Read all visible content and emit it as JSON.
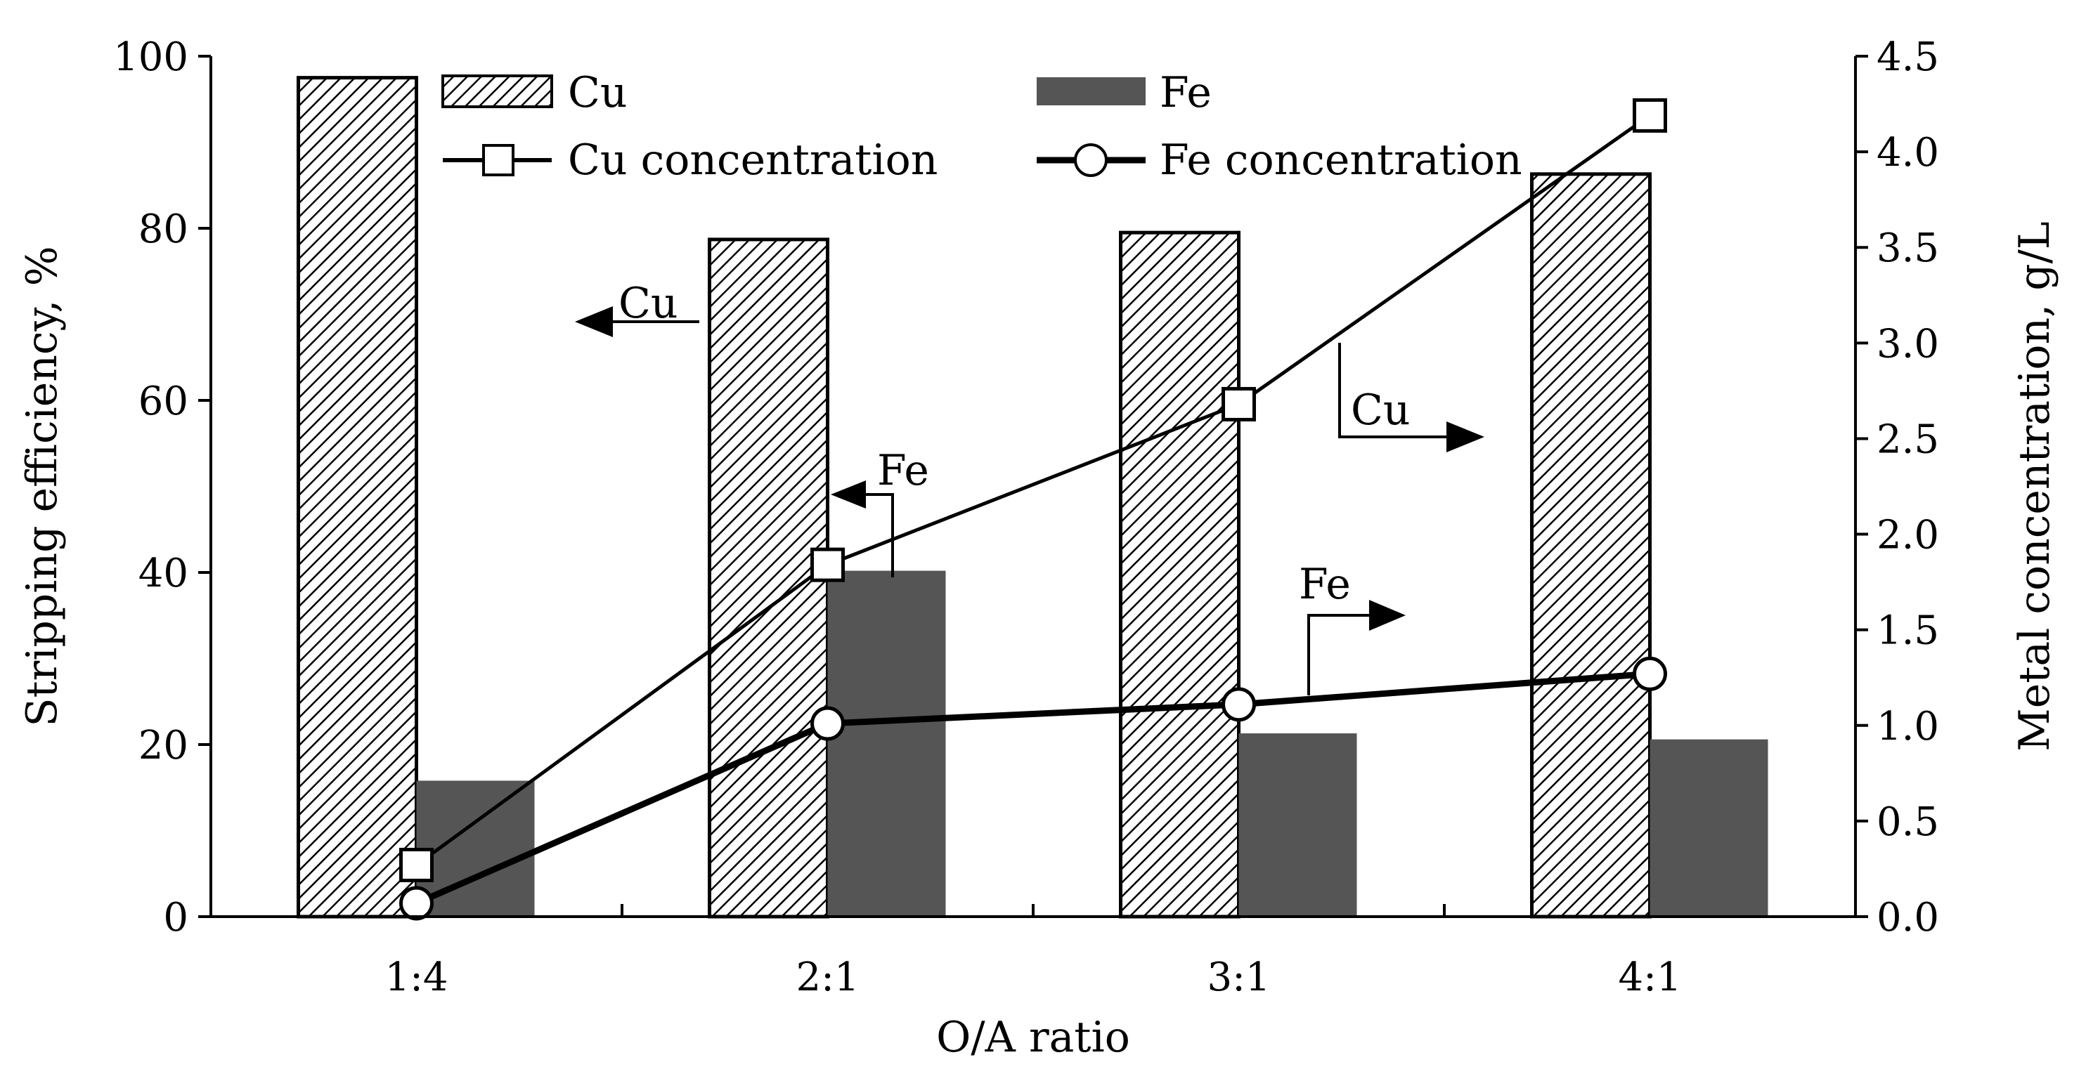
{
  "chart_data": {
    "type": "bar",
    "title": "",
    "xlabel": "O/A ratio",
    "ylabel": "Stripping  efficiency, %",
    "y2label": "Metal concentration, g/L",
    "categories": [
      "1:4",
      "2:1",
      "3:1",
      "4:1"
    ],
    "ylim": [
      0,
      100
    ],
    "y2lim": [
      0,
      4.5
    ],
    "yticks": [
      "0",
      "20",
      "40",
      "60",
      "80",
      "100"
    ],
    "y2ticks": [
      "0.0",
      "0.5",
      "1.0",
      "1.5",
      "2.0",
      "2.5",
      "3.0",
      "3.5",
      "4.0",
      "4.5"
    ],
    "series": [
      {
        "name": "Cu",
        "type": "bar",
        "axis": "left",
        "pattern": "hatched",
        "values": [
          97.5,
          78.7,
          79.5,
          86.3
        ]
      },
      {
        "name": "Fe",
        "type": "bar",
        "axis": "left",
        "color": "#555555",
        "values": [
          15.8,
          40.2,
          21.3,
          20.6
        ]
      },
      {
        "name": "Cu concentration",
        "type": "line",
        "marker": "square",
        "axis": "right",
        "values": [
          0.27,
          1.84,
          2.68,
          4.19
        ]
      },
      {
        "name": "Fe concentration",
        "type": "line",
        "marker": "circle",
        "axis": "right",
        "values": [
          0.07,
          1.01,
          1.11,
          1.27
        ]
      }
    ],
    "annotations": {
      "cu_left": "Cu",
      "fe_left": "Fe",
      "cu_right": "Cu",
      "fe_right": "Fe"
    },
    "legend": "top"
  }
}
